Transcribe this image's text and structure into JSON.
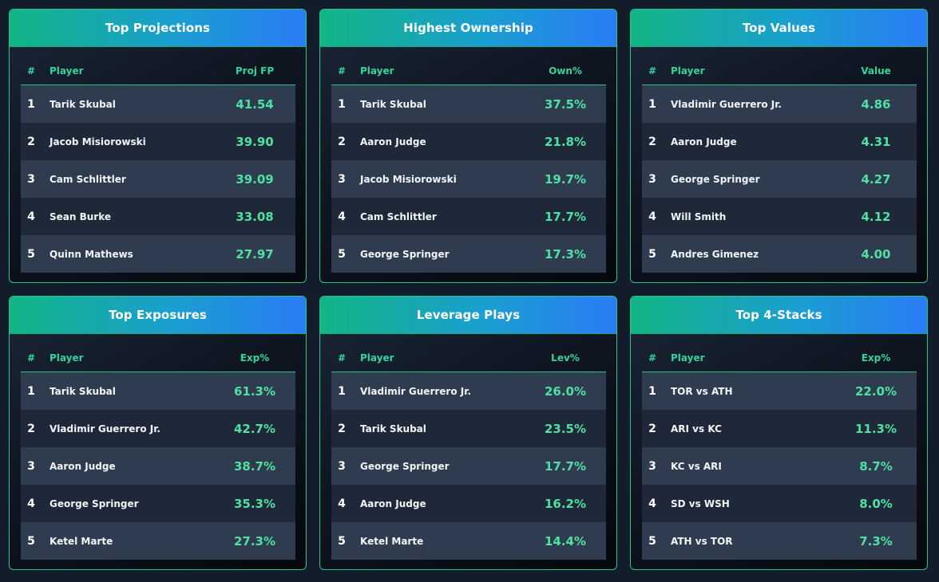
{
  "cards": [
    {
      "title": "Top Projections",
      "columns": [
        "#",
        "Player",
        "Proj FP"
      ],
      "rows": [
        {
          "rank": "1",
          "player": "Tarik Skubal",
          "value": "41.54"
        },
        {
          "rank": "2",
          "player": "Jacob Misiorowski",
          "value": "39.90"
        },
        {
          "rank": "3",
          "player": "Cam Schlittler",
          "value": "39.09"
        },
        {
          "rank": "4",
          "player": "Sean Burke",
          "value": "33.08"
        },
        {
          "rank": "5",
          "player": "Quinn Mathews",
          "value": "27.97"
        }
      ]
    },
    {
      "title": "Highest Ownership",
      "columns": [
        "#",
        "Player",
        "Own%"
      ],
      "rows": [
        {
          "rank": "1",
          "player": "Tarik Skubal",
          "value": "37.5%"
        },
        {
          "rank": "2",
          "player": "Aaron Judge",
          "value": "21.8%"
        },
        {
          "rank": "3",
          "player": "Jacob Misiorowski",
          "value": "19.7%"
        },
        {
          "rank": "4",
          "player": "Cam Schlittler",
          "value": "17.7%"
        },
        {
          "rank": "5",
          "player": "George Springer",
          "value": "17.3%"
        }
      ]
    },
    {
      "title": "Top Values",
      "columns": [
        "#",
        "Player",
        "Value"
      ],
      "rows": [
        {
          "rank": "1",
          "player": "Vladimir Guerrero Jr.",
          "value": "4.86"
        },
        {
          "rank": "2",
          "player": "Aaron Judge",
          "value": "4.31"
        },
        {
          "rank": "3",
          "player": "George Springer",
          "value": "4.27"
        },
        {
          "rank": "4",
          "player": "Will Smith",
          "value": "4.12"
        },
        {
          "rank": "5",
          "player": "Andres Gimenez",
          "value": "4.00"
        }
      ]
    },
    {
      "title": "Top Exposures",
      "columns": [
        "#",
        "Player",
        "Exp%"
      ],
      "rows": [
        {
          "rank": "1",
          "player": "Tarik Skubal",
          "value": "61.3%"
        },
        {
          "rank": "2",
          "player": "Vladimir Guerrero Jr.",
          "value": "42.7%"
        },
        {
          "rank": "3",
          "player": "Aaron Judge",
          "value": "38.7%"
        },
        {
          "rank": "4",
          "player": "George Springer",
          "value": "35.3%"
        },
        {
          "rank": "5",
          "player": "Ketel Marte",
          "value": "27.3%"
        }
      ]
    },
    {
      "title": "Leverage Plays",
      "columns": [
        "#",
        "Player",
        "Lev%"
      ],
      "rows": [
        {
          "rank": "1",
          "player": "Vladimir Guerrero Jr.",
          "value": "26.0%"
        },
        {
          "rank": "2",
          "player": "Tarik Skubal",
          "value": "23.5%"
        },
        {
          "rank": "3",
          "player": "George Springer",
          "value": "17.7%"
        },
        {
          "rank": "4",
          "player": "Aaron Judge",
          "value": "16.2%"
        },
        {
          "rank": "5",
          "player": "Ketel Marte",
          "value": "14.4%"
        }
      ]
    },
    {
      "title": "Top 4-Stacks",
      "columns": [
        "#",
        "Player",
        "Exp%"
      ],
      "rows": [
        {
          "rank": "1",
          "player": "TOR vs ATH",
          "value": "22.0%"
        },
        {
          "rank": "2",
          "player": "ARI vs KC",
          "value": "11.3%"
        },
        {
          "rank": "3",
          "player": "KC vs ARI",
          "value": "8.7%"
        },
        {
          "rank": "4",
          "player": "SD vs WSH",
          "value": "8.0%"
        },
        {
          "rank": "5",
          "player": "ATH vs TOR",
          "value": "7.3%"
        }
      ]
    }
  ],
  "colors": {
    "accent_green": "#4fe0a2",
    "header_gradient_start": "#12b585",
    "header_gradient_end": "#2a7cf6",
    "border": "#26c58a",
    "row_light": "#2f3c50",
    "row_dark": "#1e2838"
  }
}
